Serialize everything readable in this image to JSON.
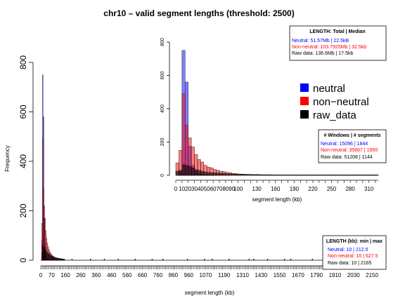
{
  "title": "chr10 – valid segment lengths (threshold: 2500)",
  "colors": {
    "neutral": "#0000ff",
    "non_neutral": "#ff0000",
    "raw_data": "#000000"
  },
  "legend": {
    "items": [
      {
        "key": "neutral",
        "label": "neutral"
      },
      {
        "key": "non_neutral",
        "label": "non−neutral"
      },
      {
        "key": "raw_data",
        "label": "raw_data"
      }
    ]
  },
  "box_total": {
    "title": "LENGTH: Total | Median",
    "neutral": "Neutral: 51.57Mb | 22.5kB",
    "non_neutral": "Non-neutral: 103.7925Mb | 32.5kb",
    "raw": "Raw data: 136.6Mb | 17.5kb"
  },
  "box_windows": {
    "title": "# Windows | # segments",
    "neutral": "Neutral: 15096 | 1844",
    "non_neutral": "Non-neutral: 35667 | 1950",
    "raw": "Raw data: 51208 | 1144"
  },
  "box_minmax": {
    "title": "LENGTH (kb): min | max",
    "neutral": "Neutral: 10 | 212.5",
    "non_neutral": "Non-neutral: 10 | 627.5",
    "raw": "Raw data: 10 | 2165"
  },
  "chart_data": [
    {
      "type": "bar",
      "title": "chr10 – valid segment lengths (threshold: 2500)",
      "xlabel": "segment length (kb)",
      "ylabel": "Frequency",
      "xlim": [
        0,
        2200
      ],
      "ylim": [
        0,
        800
      ],
      "x_tick_values": [
        0,
        70,
        160,
        260,
        360,
        460,
        560,
        660,
        760,
        860,
        960,
        1070,
        1190,
        1310,
        1430,
        1550,
        1670,
        1790,
        1910,
        2030,
        2150
      ],
      "y_ticks": [
        0,
        200,
        400,
        600,
        800
      ],
      "bin_width": 5,
      "bins_start": 5,
      "series": [
        {
          "name": "neutral",
          "values": [
            80,
            750,
            580,
            170,
            60,
            25,
            12,
            6,
            3,
            2
          ]
        },
        {
          "name": "non−neutral",
          "values": [
            150,
            490,
            290,
            220,
            170,
            120,
            90,
            70,
            55,
            45,
            35,
            30,
            25,
            20,
            18,
            15,
            12,
            10,
            10,
            8,
            7,
            6,
            6,
            5,
            4,
            3,
            3,
            2,
            2,
            2
          ]
        },
        {
          "name": "raw_data",
          "values": [
            30,
            60,
            55,
            50,
            45,
            40,
            35,
            30,
            28,
            25,
            22,
            20,
            18,
            16,
            15,
            14,
            13,
            12,
            11,
            10,
            9,
            8,
            8,
            7,
            7,
            6,
            6,
            5,
            5,
            5
          ]
        }
      ],
      "raw_tail_ticks_x": [
        200,
        320,
        410,
        500,
        610,
        720,
        790,
        950,
        1060,
        1110,
        1220,
        1350,
        1380,
        1470,
        1580,
        1620,
        1760,
        1830,
        1950,
        2000,
        2100,
        2165
      ]
    },
    {
      "type": "bar",
      "xlabel": "segment length (kb)",
      "ylabel": "",
      "xlim": [
        0,
        325
      ],
      "ylim": [
        0,
        800
      ],
      "x_tick_values": [
        0,
        10,
        20,
        30,
        40,
        50,
        60,
        70,
        80,
        90,
        100,
        130,
        160,
        190,
        220,
        250,
        280,
        310
      ],
      "y_ticks": [
        0,
        200,
        400,
        600,
        800
      ],
      "bin_width": 5,
      "bins_start": 0,
      "series": [
        {
          "name": "neutral",
          "values": [
            0,
            20,
            750,
            560,
            175,
            60,
            25,
            12,
            6,
            4,
            2,
            2,
            1
          ]
        },
        {
          "name": "non−neutral",
          "values": [
            75,
            150,
            490,
            300,
            225,
            170,
            125,
            95,
            80,
            60,
            50,
            45,
            35,
            30,
            25,
            22,
            18,
            15,
            12,
            10,
            8,
            7,
            6,
            5,
            5,
            4,
            4,
            3,
            3,
            2,
            2,
            2,
            2,
            1,
            1,
            1,
            1,
            1,
            1,
            1,
            1,
            1,
            1,
            1,
            1,
            1,
            1,
            1,
            1,
            1,
            1,
            1,
            1,
            1,
            1,
            1,
            1,
            1,
            1,
            1,
            1,
            1,
            1,
            1,
            1
          ]
        },
        {
          "name": "raw_data",
          "values": [
            25,
            30,
            65,
            60,
            55,
            45,
            35,
            30,
            25,
            20,
            18,
            16,
            15,
            14,
            12,
            11,
            10,
            9,
            8,
            8,
            7,
            6,
            6,
            6,
            5,
            5,
            5,
            4,
            4,
            4,
            4,
            3,
            3,
            3,
            3,
            3,
            3,
            3,
            3,
            3,
            3,
            3,
            3,
            3,
            3,
            3,
            3,
            3,
            3,
            3,
            3,
            3,
            3,
            3,
            3,
            3,
            3,
            3,
            3,
            3,
            3,
            3,
            3,
            3,
            3
          ]
        }
      ]
    }
  ]
}
